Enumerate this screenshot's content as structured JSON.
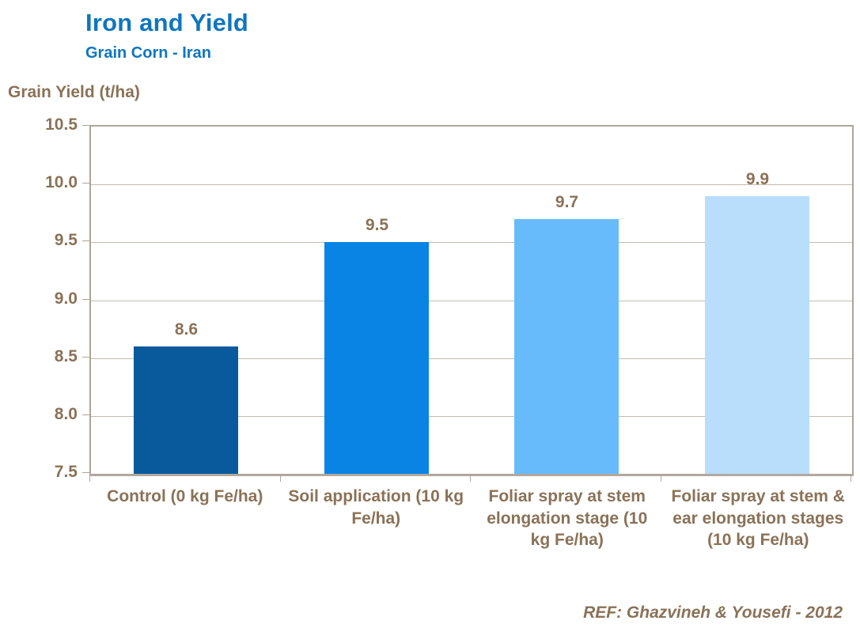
{
  "chart_data": {
    "type": "bar",
    "title": "Iron and Yield",
    "subtitle": "Grain Corn - Iran",
    "ylabel": "Grain Yield (t/ha)",
    "xlabel": "",
    "categories": [
      "Control (0 kg Fe/ha)",
      "Soil application (10 kg Fe/ha)",
      "Foliar spray at stem elongation stage (10 kg Fe/ha)",
      "Foliar spray at stem & ear elongation stages (10 kg Fe/ha)"
    ],
    "values": [
      8.6,
      9.5,
      9.7,
      9.9
    ],
    "value_labels": [
      "8.6",
      "9.5",
      "9.7",
      "9.9"
    ],
    "ylim": [
      7.5,
      10.5
    ],
    "ytick_step": 0.5,
    "yticks": [
      "10.5",
      "10.0",
      "9.5",
      "9.0",
      "8.5",
      "8.0",
      "7.5"
    ],
    "grid": true,
    "legend": false,
    "bar_colors": [
      "#095A9C",
      "#0984E4",
      "#68BBFA",
      "#B9DEFC"
    ],
    "annotation": "REF: Ghazvineh & Yousefi - 2012",
    "colors": {
      "title": "#0F76BE",
      "axis_text": "#8A7257",
      "gridline": "#C4BBAF",
      "axis_line": "#AEA498",
      "axis_line_bottom": "#B0A89E",
      "background": "#FFFFFF"
    }
  }
}
